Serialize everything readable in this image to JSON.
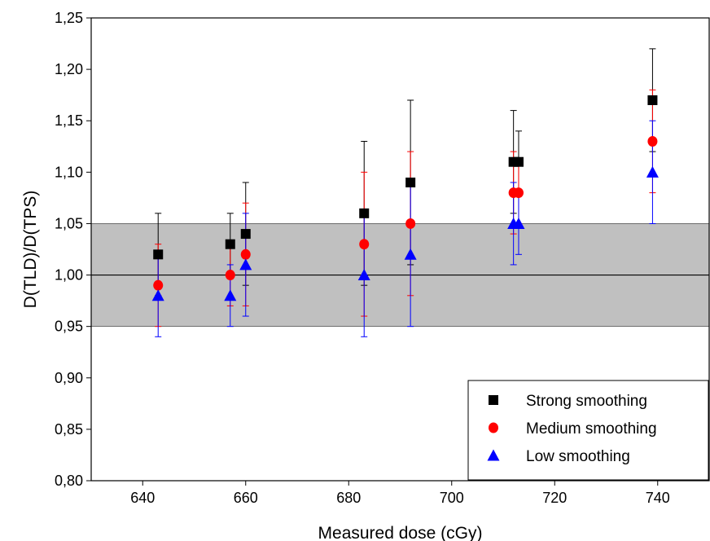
{
  "chart_data": {
    "type": "scatter",
    "title": "",
    "xlabel": "Measured dose (cGy)",
    "ylabel": "D(TLD)/D(TPS)",
    "xlim": [
      630,
      750
    ],
    "ylim": [
      0.8,
      1.25
    ],
    "xticks": [
      640,
      660,
      680,
      700,
      720,
      740
    ],
    "yticks": [
      0.8,
      0.85,
      0.9,
      0.95,
      1.0,
      1.05,
      1.1,
      1.15,
      1.2,
      1.25
    ],
    "x_tick_labels": [
      "640",
      "660",
      "680",
      "700",
      "720",
      "740"
    ],
    "y_tick_labels": [
      "0,80",
      "0,85",
      "0,90",
      "0,95",
      "1,00",
      "1,05",
      "1,10",
      "1,15",
      "1,20",
      "1,25"
    ],
    "grid": false,
    "reference_line": 1.0,
    "tolerance_band": [
      0.95,
      1.05
    ],
    "band_color": "#c0c0c0",
    "legend_position": "bottom-right",
    "series": [
      {
        "name": "Strong smoothing",
        "marker": "square",
        "color": "#000000",
        "points": [
          {
            "x": 643,
            "y": 1.02,
            "err_low": 0.98,
            "err_high": 1.06
          },
          {
            "x": 657,
            "y": 1.03,
            "err_low": 1.0,
            "err_high": 1.06
          },
          {
            "x": 660,
            "y": 1.04,
            "err_low": 0.99,
            "err_high": 1.09
          },
          {
            "x": 683,
            "y": 1.06,
            "err_low": 0.99,
            "err_high": 1.13
          },
          {
            "x": 692,
            "y": 1.09,
            "err_low": 1.01,
            "err_high": 1.17
          },
          {
            "x": 712,
            "y": 1.11,
            "err_low": 1.06,
            "err_high": 1.16
          },
          {
            "x": 713,
            "y": 1.11,
            "err_low": 1.08,
            "err_high": 1.14
          },
          {
            "x": 739,
            "y": 1.17,
            "err_low": 1.12,
            "err_high": 1.22
          }
        ]
      },
      {
        "name": "Medium smoothing",
        "marker": "circle",
        "color": "#ff0000",
        "points": [
          {
            "x": 643,
            "y": 0.99,
            "err_low": 0.95,
            "err_high": 1.03
          },
          {
            "x": 657,
            "y": 1.0,
            "err_low": 0.97,
            "err_high": 1.03
          },
          {
            "x": 660,
            "y": 1.02,
            "err_low": 0.97,
            "err_high": 1.07
          },
          {
            "x": 683,
            "y": 1.03,
            "err_low": 0.96,
            "err_high": 1.1
          },
          {
            "x": 692,
            "y": 1.05,
            "err_low": 0.98,
            "err_high": 1.12
          },
          {
            "x": 712,
            "y": 1.08,
            "err_low": 1.04,
            "err_high": 1.12
          },
          {
            "x": 713,
            "y": 1.08,
            "err_low": 1.05,
            "err_high": 1.11
          },
          {
            "x": 739,
            "y": 1.13,
            "err_low": 1.08,
            "err_high": 1.18
          }
        ]
      },
      {
        "name": "Low smoothing",
        "marker": "triangle",
        "color": "#0000ff",
        "points": [
          {
            "x": 643,
            "y": 0.98,
            "err_low": 0.94,
            "err_high": 1.02
          },
          {
            "x": 657,
            "y": 0.98,
            "err_low": 0.95,
            "err_high": 1.01
          },
          {
            "x": 660,
            "y": 1.01,
            "err_low": 0.96,
            "err_high": 1.06
          },
          {
            "x": 683,
            "y": 1.0,
            "err_low": 0.94,
            "err_high": 1.06
          },
          {
            "x": 692,
            "y": 1.02,
            "err_low": 0.95,
            "err_high": 1.09
          },
          {
            "x": 712,
            "y": 1.05,
            "err_low": 1.01,
            "err_high": 1.09
          },
          {
            "x": 713,
            "y": 1.05,
            "err_low": 1.02,
            "err_high": 1.08
          },
          {
            "x": 739,
            "y": 1.1,
            "err_low": 1.05,
            "err_high": 1.15
          }
        ]
      }
    ]
  }
}
